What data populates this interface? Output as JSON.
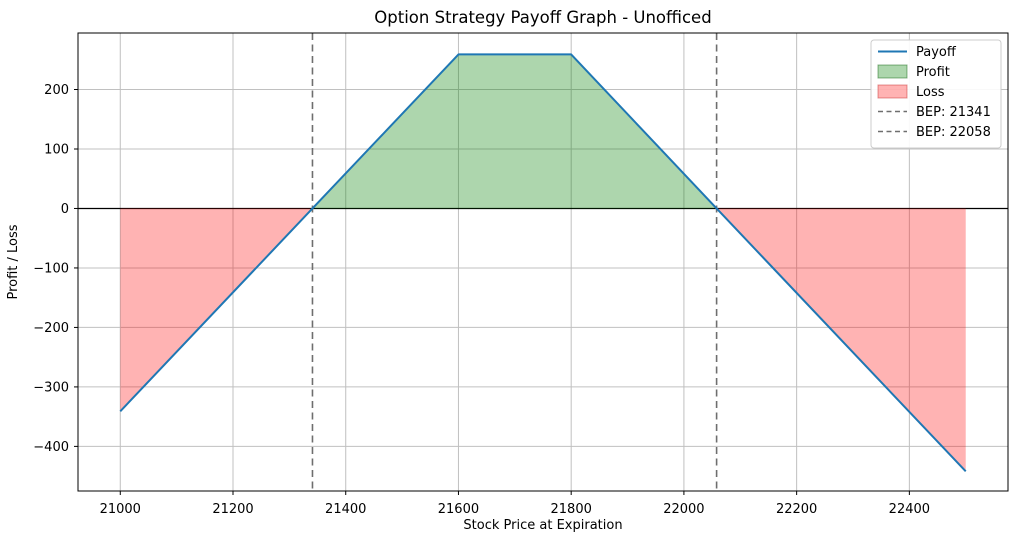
{
  "figure": {
    "kind": "matplotlib-payoff-figure"
  },
  "chart_data": {
    "type": "line",
    "title": "Option Strategy Payoff Graph - Unofficed",
    "xlabel": "Stock Price at Expiration",
    "ylabel": "Profit / Loss",
    "xlim": [
      20925,
      22575
    ],
    "ylim": [
      -475,
      295
    ],
    "grid": true,
    "grid_color": "#c0c0c0",
    "background": "#ffffff",
    "x_ticks": [
      {
        "v": 21000,
        "label": "21000"
      },
      {
        "v": 21200,
        "label": "21200"
      },
      {
        "v": 21400,
        "label": "21400"
      },
      {
        "v": 21600,
        "label": "21600"
      },
      {
        "v": 21800,
        "label": "21800"
      },
      {
        "v": 22000,
        "label": "22000"
      },
      {
        "v": 22200,
        "label": "22200"
      },
      {
        "v": 22400,
        "label": "22400"
      }
    ],
    "y_ticks": [
      {
        "v": -400,
        "label": "−400"
      },
      {
        "v": -300,
        "label": "−300"
      },
      {
        "v": -200,
        "label": "−200"
      },
      {
        "v": -100,
        "label": "−100"
      },
      {
        "v": 0,
        "label": "0"
      },
      {
        "v": 100,
        "label": "100"
      },
      {
        "v": 200,
        "label": "200"
      }
    ],
    "series": [
      {
        "name": "Payoff",
        "color": "#1f77b4",
        "points": [
          [
            21000,
            -341
          ],
          [
            21341,
            0
          ],
          [
            21600,
            259
          ],
          [
            21800,
            259
          ],
          [
            22058,
            0
          ],
          [
            22500,
            -442
          ]
        ]
      }
    ],
    "zero_line": {
      "y": 0,
      "color": "#000000"
    },
    "bep_lines": [
      {
        "x": 21341,
        "label": "BEP: 21341"
      },
      {
        "x": 22058,
        "label": "BEP: 22058"
      }
    ],
    "bep_color": "#6e6e6e",
    "fills": {
      "profit": {
        "name": "Profit",
        "color": "rgba(0,128,0,0.32)"
      },
      "loss": {
        "name": "Loss",
        "color": "rgba(255,10,10,0.31)"
      }
    },
    "legend": {
      "position": "upper right",
      "entries": [
        {
          "label": "Payoff",
          "type": "line",
          "color": "#1f77b4"
        },
        {
          "label": "Profit",
          "type": "patch",
          "color": "rgba(0,128,0,0.32)",
          "edge": "rgba(0,90,0,0.45)"
        },
        {
          "label": "Loss",
          "type": "patch",
          "color": "rgba(255,10,10,0.31)",
          "edge": "rgba(200,50,50,0.5)"
        },
        {
          "label": "BEP: 21341",
          "type": "dashed",
          "color": "#6e6e6e"
        },
        {
          "label": "BEP: 22058",
          "type": "dashed",
          "color": "#6e6e6e"
        }
      ]
    }
  }
}
